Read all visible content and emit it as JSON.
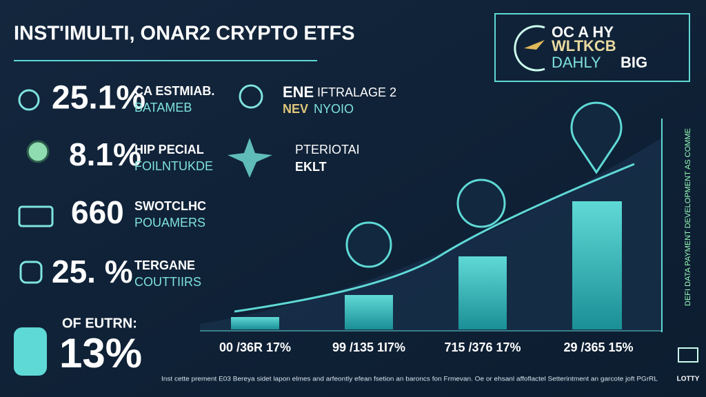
{
  "header": {
    "title": "INST'IMULTI, ONAR2 CRYPTO ETFS"
  },
  "logo": {
    "line1": "OC A HY",
    "line2": "WLTKCB",
    "line3a": "DAHLY",
    "line3b": "BIG"
  },
  "stats": [
    {
      "value": "25.1%",
      "label1": "CA ESTMIAB.",
      "label2": "BATAMEB"
    },
    {
      "value": "8.1%",
      "label1": "HIP PECIAL",
      "label2": "FOILNTUKDE"
    },
    {
      "value": "660",
      "label1": "SWOTCLHC",
      "label2": "POUAMERS"
    },
    {
      "value": "25. %",
      "label1": "TERGANE",
      "label2": "COUTTIIRS"
    }
  ],
  "highlight": {
    "label": "OF EUTRN:",
    "value": "13%"
  },
  "features": [
    {
      "title": "ENE",
      "title2": "IFTRALAGE 2",
      "sub": "NEV",
      "sub2": "NYOIO"
    },
    {
      "title": "PTERIOTAI",
      "sub": "EKLT"
    }
  ],
  "bars": [
    "00 /36R 17%",
    "99 /135 1I7%",
    "715 /376 17%",
    "29 /365 15%"
  ],
  "side_text": "DEFI DATA PAYMENT DEVELOPMENT AS COMME",
  "corner": "LOTTY",
  "footer": "Inst cette prement E03 Bereya sidet lapon elmes and arfeontly efean fsetion an baroncs fon Frmevan. Oe or ehsanl affoflactel Setterintment an garcote joft PGrRL"
}
